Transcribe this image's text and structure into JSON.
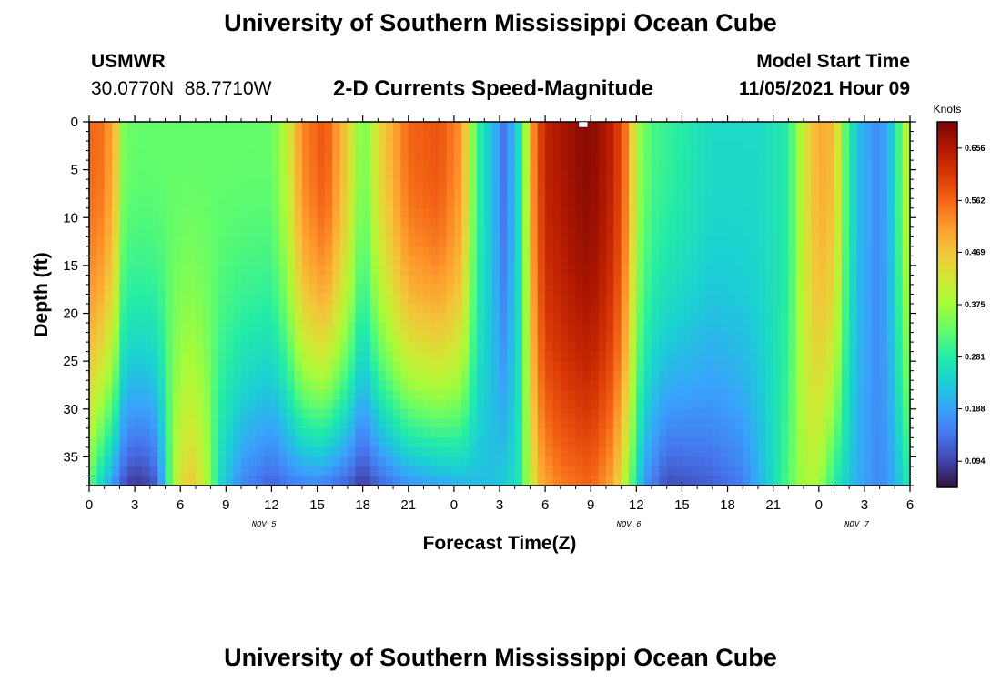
{
  "header": {
    "title": "University of Southern Mississippi Ocean Cube",
    "station_id": "USMWR",
    "coords": "30.0770N  88.7710W",
    "plot_title": "2-D Currents Speed-Magnitude",
    "start_label": "Model Start Time",
    "start_value": "11/05/2021 Hour 09"
  },
  "footer": {
    "title": "University of Southern Mississippi Ocean Cube"
  },
  "colors": {
    "colormap": [
      "#30123b",
      "#4145ab",
      "#4675ed",
      "#39a2fc",
      "#1bcfd4",
      "#24eca6",
      "#61fc6c",
      "#a4fc3b",
      "#d1e834",
      "#f3c63a",
      "#fe9b2d",
      "#f36315",
      "#d93806",
      "#b11901",
      "#7a0403"
    ]
  },
  "chart_data": {
    "type": "heatmap",
    "title": "2-D Currents Speed-Magnitude",
    "xlabel": "Forecast Time(Z)",
    "ylabel": "Depth (ft)",
    "x_hours_start": 0,
    "x_hours_end": 54,
    "x_tick_labels": [
      "0",
      "3",
      "6",
      "9",
      "12",
      "15",
      "18",
      "21",
      "0",
      "3",
      "6",
      "9",
      "12",
      "15",
      "18",
      "21",
      "0",
      "3",
      "6"
    ],
    "date_labels": [
      {
        "label": "NOV 5",
        "hour": 11.5
      },
      {
        "label": "NOV 6",
        "hour": 35.5
      },
      {
        "label": "NOV 7",
        "hour": 50.5
      }
    ],
    "y_range": [
      0,
      38
    ],
    "y_ticks": [
      0,
      5,
      10,
      15,
      20,
      25,
      30,
      35
    ],
    "colorbar": {
      "label": "Knots",
      "min": 0.047,
      "max": 0.703,
      "ticks": [
        0.094,
        0.188,
        0.281,
        0.375,
        0.469,
        0.562,
        0.656
      ],
      "tick_labels": [
        "0.094",
        "0.188",
        "0.281",
        "0.375",
        "0.469",
        "0.562",
        "0.656"
      ]
    },
    "surface_speed_knots": [
      {
        "hour": 0.0,
        "value": 0.56
      },
      {
        "hour": 1.0,
        "value": 0.55
      },
      {
        "hour": 1.8,
        "value": 0.46
      },
      {
        "hour": 2.3,
        "value": 0.34
      },
      {
        "hour": 3.0,
        "value": 0.33
      },
      {
        "hour": 6.0,
        "value": 0.33
      },
      {
        "hour": 10.0,
        "value": 0.33
      },
      {
        "hour": 12.0,
        "value": 0.33
      },
      {
        "hour": 13.0,
        "value": 0.4
      },
      {
        "hour": 14.0,
        "value": 0.53
      },
      {
        "hour": 15.5,
        "value": 0.58
      },
      {
        "hour": 17.0,
        "value": 0.46
      },
      {
        "hour": 18.0,
        "value": 0.33
      },
      {
        "hour": 19.0,
        "value": 0.44
      },
      {
        "hour": 20.0,
        "value": 0.5
      },
      {
        "hour": 21.0,
        "value": 0.56
      },
      {
        "hour": 23.0,
        "value": 0.58
      },
      {
        "hour": 24.5,
        "value": 0.52
      },
      {
        "hour": 25.5,
        "value": 0.3
      },
      {
        "hour": 26.5,
        "value": 0.22
      },
      {
        "hour": 27.3,
        "value": 0.14
      },
      {
        "hour": 28.0,
        "value": 0.22
      },
      {
        "hour": 28.6,
        "value": 0.3
      },
      {
        "hour": 29.0,
        "value": 0.5
      },
      {
        "hour": 30.0,
        "value": 0.64
      },
      {
        "hour": 32.0,
        "value": 0.68
      },
      {
        "hour": 33.0,
        "value": 0.69
      },
      {
        "hour": 34.5,
        "value": 0.64
      },
      {
        "hour": 35.5,
        "value": 0.52
      },
      {
        "hour": 36.0,
        "value": 0.38
      },
      {
        "hour": 37.0,
        "value": 0.31
      },
      {
        "hour": 39.0,
        "value": 0.28
      },
      {
        "hour": 41.0,
        "value": 0.25
      },
      {
        "hour": 44.0,
        "value": 0.25
      },
      {
        "hour": 46.0,
        "value": 0.28
      },
      {
        "hour": 47.0,
        "value": 0.42
      },
      {
        "hour": 48.0,
        "value": 0.5
      },
      {
        "hour": 49.0,
        "value": 0.48
      },
      {
        "hour": 49.7,
        "value": 0.33
      },
      {
        "hour": 50.5,
        "value": 0.22
      },
      {
        "hour": 52.0,
        "value": 0.16
      },
      {
        "hour": 53.0,
        "value": 0.25
      },
      {
        "hour": 53.6,
        "value": 0.38
      },
      {
        "hour": 54.0,
        "value": 0.4
      }
    ],
    "bottom_speed_knots": [
      {
        "hour": 0.0,
        "value": 0.33
      },
      {
        "hour": 0.7,
        "value": 0.25
      },
      {
        "hour": 1.5,
        "value": 0.18
      },
      {
        "hour": 2.5,
        "value": 0.09
      },
      {
        "hour": 3.5,
        "value": 0.08
      },
      {
        "hour": 4.5,
        "value": 0.12
      },
      {
        "hour": 5.2,
        "value": 0.3
      },
      {
        "hour": 6.0,
        "value": 0.44
      },
      {
        "hour": 6.8,
        "value": 0.46
      },
      {
        "hour": 7.8,
        "value": 0.38
      },
      {
        "hour": 8.6,
        "value": 0.25
      },
      {
        "hour": 10.0,
        "value": 0.16
      },
      {
        "hour": 12.0,
        "value": 0.12
      },
      {
        "hour": 13.5,
        "value": 0.15
      },
      {
        "hour": 15.0,
        "value": 0.16
      },
      {
        "hour": 17.0,
        "value": 0.12
      },
      {
        "hour": 18.0,
        "value": 0.08
      },
      {
        "hour": 19.0,
        "value": 0.12
      },
      {
        "hour": 21.0,
        "value": 0.17
      },
      {
        "hour": 23.0,
        "value": 0.19
      },
      {
        "hour": 25.0,
        "value": 0.21
      },
      {
        "hour": 26.5,
        "value": 0.22
      },
      {
        "hour": 27.5,
        "value": 0.24
      },
      {
        "hour": 28.3,
        "value": 0.27
      },
      {
        "hour": 29.0,
        "value": 0.4
      },
      {
        "hour": 29.8,
        "value": 0.5
      },
      {
        "hour": 31.0,
        "value": 0.54
      },
      {
        "hour": 33.0,
        "value": 0.56
      },
      {
        "hour": 34.5,
        "value": 0.5
      },
      {
        "hour": 35.5,
        "value": 0.35
      },
      {
        "hour": 36.5,
        "value": 0.18
      },
      {
        "hour": 38.0,
        "value": 0.1
      },
      {
        "hour": 41.0,
        "value": 0.12
      },
      {
        "hour": 43.0,
        "value": 0.15
      },
      {
        "hour": 45.0,
        "value": 0.25
      },
      {
        "hour": 46.0,
        "value": 0.32
      },
      {
        "hour": 47.0,
        "value": 0.38
      },
      {
        "hour": 48.0,
        "value": 0.38
      },
      {
        "hour": 49.0,
        "value": 0.28
      },
      {
        "hour": 50.5,
        "value": 0.2
      },
      {
        "hour": 52.0,
        "value": 0.16
      },
      {
        "hour": 53.0,
        "value": 0.2
      },
      {
        "hour": 54.0,
        "value": 0.28
      }
    ],
    "profile_shape_note": "speed varies with depth roughly as a power of depth between surface and bottom values; a small white marker at hour 32.5 surface"
  }
}
